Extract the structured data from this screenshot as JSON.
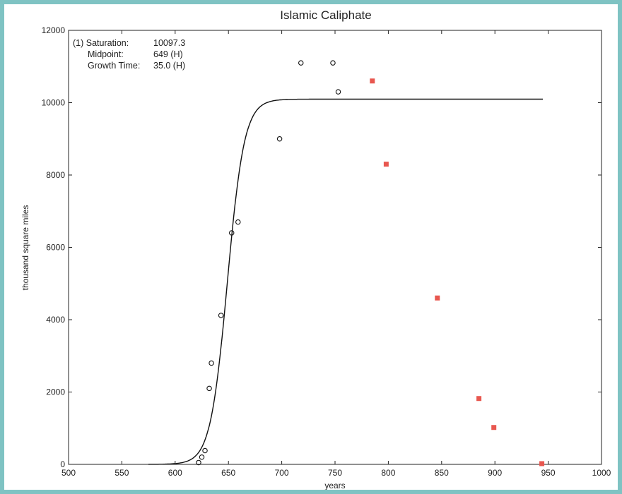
{
  "chart_data": {
    "type": "scatter",
    "title": "Islamic Caliphate",
    "xlabel": "years",
    "ylabel": "thousand square miles",
    "xlim": [
      500,
      1000
    ],
    "ylim": [
      0,
      12000
    ],
    "xticks": [
      "500",
      "550",
      "600",
      "650",
      "700",
      "750",
      "800",
      "850",
      "900",
      "950",
      "1000"
    ],
    "yticks": [
      "0",
      "2000",
      "4000",
      "6000",
      "8000",
      "10000",
      "12000"
    ],
    "grid": false,
    "annotation": {
      "line1_label": "(1) Saturation:",
      "line1_value": "10097.3",
      "line2_label": "Midpoint:",
      "line2_value": "649 (H)",
      "line3_label": "Growth Time:",
      "line3_value": "35.0 (H)"
    },
    "fit_curve": {
      "model": "logistic",
      "saturation": 10097.3,
      "midpoint": 649,
      "growth_time": 35.0,
      "x_range": [
        575,
        945
      ],
      "color": "#111111"
    },
    "series": [
      {
        "marker": "open-circle",
        "color": "#111111",
        "points": [
          [
            622,
            50
          ],
          [
            625,
            200
          ],
          [
            628,
            380
          ],
          [
            632,
            2100
          ],
          [
            634,
            2800
          ],
          [
            643,
            4120
          ],
          [
            653,
            6400
          ],
          [
            659,
            6700
          ],
          [
            698,
            9000
          ],
          [
            718,
            11100
          ],
          [
            748,
            11100
          ],
          [
            753,
            10300
          ]
        ]
      },
      {
        "marker": "filled-square",
        "color": "#e8574f",
        "points": [
          [
            785,
            10600
          ],
          [
            798,
            8300
          ],
          [
            846,
            4600
          ],
          [
            885,
            1820
          ],
          [
            899,
            1020
          ],
          [
            944,
            20
          ]
        ]
      }
    ]
  }
}
